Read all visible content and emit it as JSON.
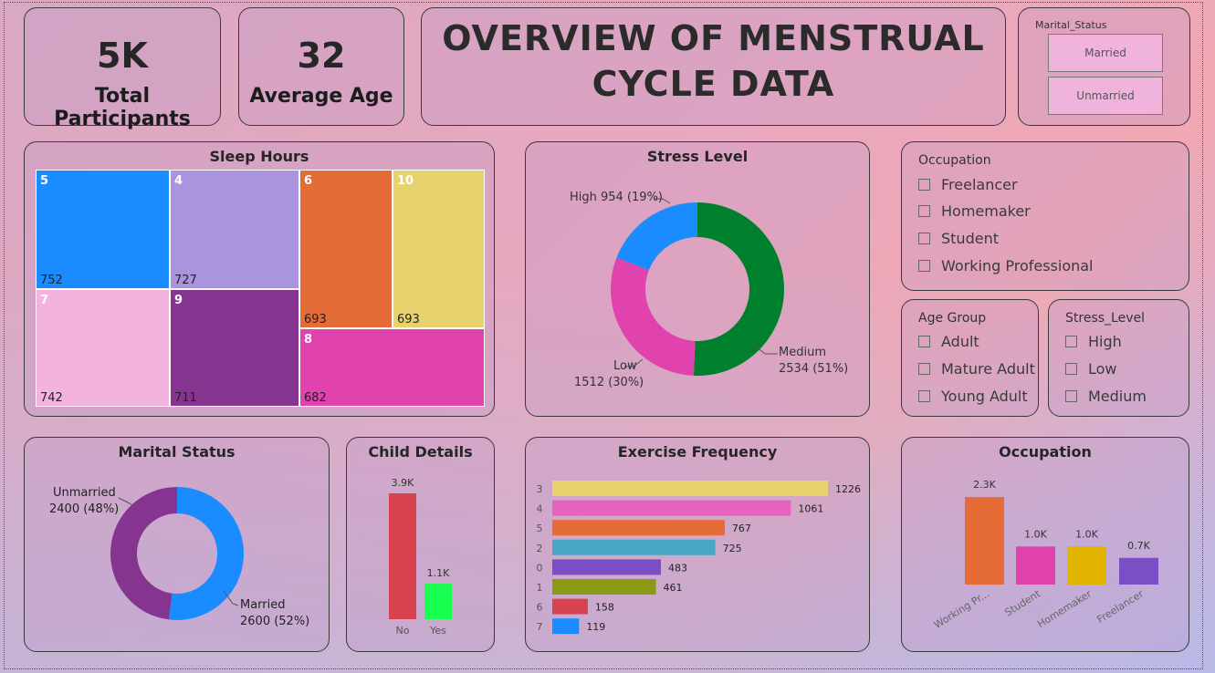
{
  "kpis": {
    "participants_value": "5K",
    "participants_label": "Total Participants",
    "age_value": "32",
    "age_label": "Average Age"
  },
  "title": {
    "line1": "OVERVIEW OF MENSTRUAL",
    "line2": "CYCLE  DATA"
  },
  "marital_slicer": {
    "title": "Marital_Status",
    "options": [
      "Married",
      "Unmarried"
    ]
  },
  "occupation_slicer": {
    "title": "Occupation",
    "options": [
      "Freelancer",
      "Homemaker",
      "Student",
      "Working Professional"
    ]
  },
  "age_slicer": {
    "title": "Age Group",
    "options": [
      "Adult",
      "Mature Adult",
      "Young Adult"
    ]
  },
  "stress_slicer": {
    "title": "Stress_Level",
    "options": [
      "High",
      "Low",
      "Medium"
    ]
  },
  "colors": {
    "blue": "#1a8cff",
    "purple_light": "#ab94de",
    "orange": "#e56c37",
    "yellow": "#e7d36e",
    "pink_light": "#f2b3dd",
    "purple_dark": "#85348f",
    "magenta": "#e043ae",
    "green": "#007f2d",
    "red": "#d9434f",
    "lime": "#19ff4f"
  },
  "chart_data": [
    {
      "type": "treemap",
      "title": "Sleep Hours",
      "items": [
        {
          "label": "5",
          "value": 752
        },
        {
          "label": "4",
          "value": 727
        },
        {
          "label": "6",
          "value": 693
        },
        {
          "label": "10",
          "value": 693
        },
        {
          "label": "7",
          "value": 742
        },
        {
          "label": "9",
          "value": 711
        },
        {
          "label": "8",
          "value": 682
        }
      ]
    },
    {
      "type": "pie",
      "title": "Stress Level",
      "slices": [
        {
          "label": "High",
          "value": 954,
          "display": "High 954 (19%)"
        },
        {
          "label": "Medium",
          "value": 2534,
          "display_line1": "Medium",
          "display_line2": "2534 (51%)"
        },
        {
          "label": "Low",
          "value": 1512,
          "display_line1": "Low",
          "display_line2": "1512 (30%)"
        }
      ]
    },
    {
      "type": "pie",
      "title": "Marital Status",
      "slices": [
        {
          "label": "Married",
          "value": 2600,
          "display_line1": "Married",
          "display_line2": "2600 (52%)"
        },
        {
          "label": "Unmarried",
          "value": 2400,
          "display_line1": "Unmarried",
          "display_line2": "2400 (48%)"
        }
      ]
    },
    {
      "type": "bar",
      "title": "Child Details",
      "categories": [
        "No",
        "Yes"
      ],
      "values": [
        3900,
        1100
      ],
      "labels": [
        "3.9K",
        "1.1K"
      ]
    },
    {
      "type": "bar",
      "orientation": "horizontal",
      "title": "Exercise Frequency",
      "categories": [
        "3",
        "4",
        "5",
        "2",
        "0",
        "1",
        "6",
        "7"
      ],
      "values": [
        1226,
        1061,
        767,
        725,
        483,
        461,
        158,
        119
      ]
    },
    {
      "type": "bar",
      "title": "Occupation",
      "categories": [
        "Working Pr...",
        "Student",
        "Homemaker",
        "Freelancer"
      ],
      "values": [
        2300,
        1000,
        1000,
        700
      ],
      "labels": [
        "2.3K",
        "1.0K",
        "1.0K",
        "0.7K"
      ]
    }
  ]
}
